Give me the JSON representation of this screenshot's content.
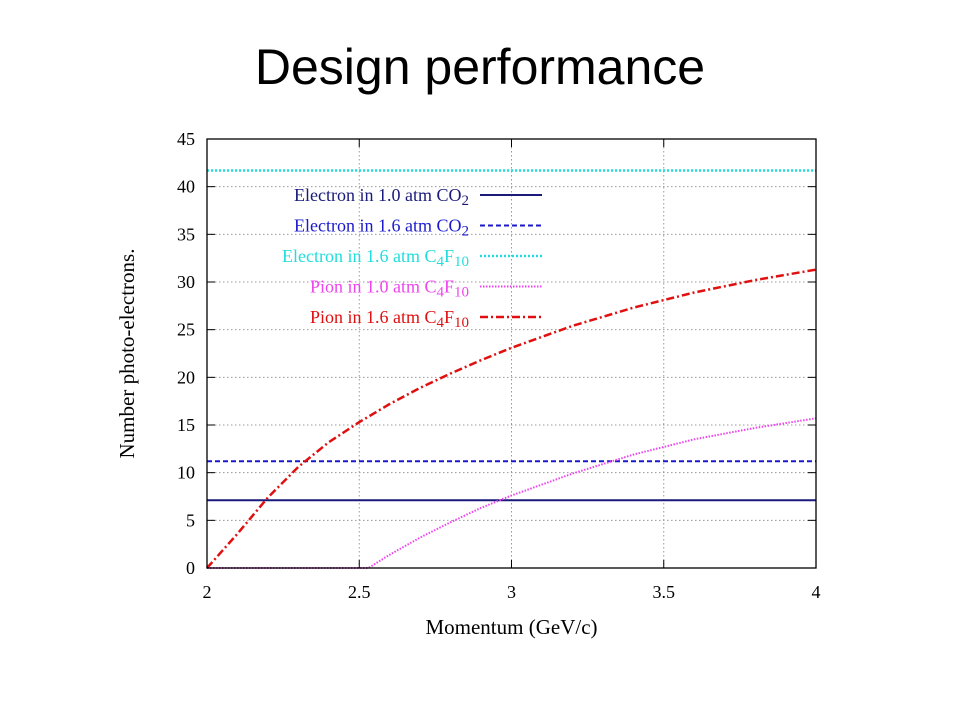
{
  "slide": {
    "title": "Design performance"
  },
  "chart_data": {
    "type": "line",
    "xlabel": "Momentum (GeV/c)",
    "ylabel": "Number photo-electrons.",
    "xlim": [
      2,
      4
    ],
    "ylim": [
      0,
      45
    ],
    "x_ticks": [
      2,
      2.5,
      3,
      3.5,
      4
    ],
    "x_tick_labels": [
      "2",
      "2.5",
      "3",
      "3.5",
      "4"
    ],
    "y_ticks": [
      0,
      5,
      10,
      15,
      20,
      25,
      30,
      35,
      40,
      45
    ],
    "y_tick_labels": [
      "0",
      "5",
      "10",
      "15",
      "20",
      "25",
      "30",
      "35",
      "40",
      "45"
    ],
    "grid": true,
    "legend_position": "top-left",
    "series": [
      {
        "name": "Electron in 1.0 atm CO2",
        "label_parts": [
          [
            "Electron in 1.0 atm CO",
            ""
          ],
          [
            "2",
            "sub"
          ]
        ],
        "color": "#1a1a7a",
        "dash": "solid",
        "x": [
          2,
          4
        ],
        "y": [
          7.1,
          7.1
        ]
      },
      {
        "name": "Electron in 1.6 atm CO2",
        "label_parts": [
          [
            "Electron in 1.6 atm CO",
            ""
          ],
          [
            "2",
            "sub"
          ]
        ],
        "color": "#1a1acc",
        "dash": "dashed",
        "x": [
          2,
          4
        ],
        "y": [
          11.2,
          11.2
        ]
      },
      {
        "name": "Electron in 1.6 atm C4F10",
        "label_parts": [
          [
            "Electron in 1.6 atm C",
            ""
          ],
          [
            "4",
            "sub"
          ],
          [
            "F",
            ""
          ],
          [
            "10",
            "sub"
          ]
        ],
        "color": "#22dddd",
        "dash": "dotted",
        "x": [
          2,
          4
        ],
        "y": [
          41.7,
          41.7
        ]
      },
      {
        "name": "Pion in 1.0 atm C4F10",
        "label_parts": [
          [
            "Pion in 1.0 atm C",
            ""
          ],
          [
            "4",
            "sub"
          ],
          [
            "F",
            ""
          ],
          [
            "10",
            "sub"
          ]
        ],
        "color": "#ee44ee",
        "dash": "dotted-fine",
        "x": [
          2,
          2.2,
          2.4,
          2.53,
          2.6,
          2.7,
          2.8,
          2.9,
          3.0,
          3.2,
          3.4,
          3.6,
          3.8,
          4.0
        ],
        "y": [
          0,
          0,
          0,
          0,
          1.4,
          3.2,
          4.8,
          6.3,
          7.6,
          9.9,
          11.9,
          13.5,
          14.7,
          15.7
        ]
      },
      {
        "name": "Pion in 1.6 atm C4F10",
        "label_parts": [
          [
            "Pion in 1.6 atm C",
            ""
          ],
          [
            "4",
            "sub"
          ],
          [
            "F",
            ""
          ],
          [
            "10",
            "sub"
          ]
        ],
        "color": "#e01010",
        "dash": "dashdot",
        "x": [
          2,
          2.1,
          2.2,
          2.3,
          2.4,
          2.5,
          2.6,
          2.7,
          2.8,
          2.9,
          3.0,
          3.2,
          3.4,
          3.6,
          3.8,
          4.0
        ],
        "y": [
          0,
          3.6,
          7.4,
          10.6,
          13.2,
          15.3,
          17.2,
          18.9,
          20.4,
          21.8,
          23.1,
          25.4,
          27.3,
          28.9,
          30.2,
          31.3
        ]
      }
    ]
  }
}
